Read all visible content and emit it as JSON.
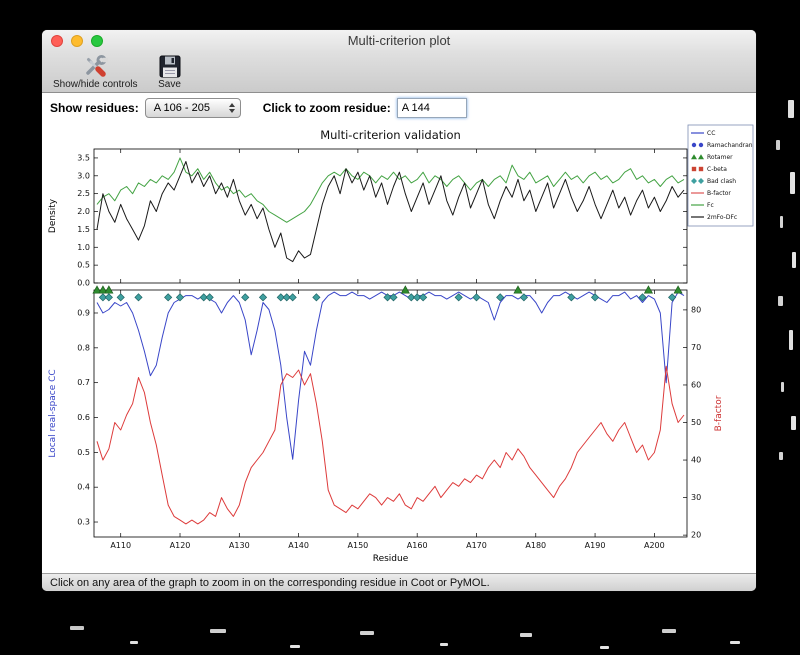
{
  "window": {
    "title": "Multi-criterion plot",
    "buttons": [
      "close",
      "minimize",
      "zoom"
    ]
  },
  "toolbar": {
    "buttons": [
      {
        "label": "Show/hide controls",
        "icon": "tools-icon"
      },
      {
        "label": "Save",
        "icon": "save-icon"
      }
    ]
  },
  "controls": {
    "show_residues_label": "Show residues:",
    "residue_range_value": "A 106 - 205",
    "zoom_label": "Click to zoom residue:",
    "zoom_value": "A 144"
  },
  "figure": {
    "legend": [
      {
        "label": "CC",
        "swatch": "line",
        "color": "#3946c8"
      },
      {
        "label": "Ramachandran",
        "swatch": "circles",
        "color": "#3946c8"
      },
      {
        "label": "Rotamer",
        "swatch": "triangles",
        "color": "#2e8b2e"
      },
      {
        "label": "C-beta",
        "swatch": "squares",
        "color": "#cc4433"
      },
      {
        "label": "Bad clash",
        "swatch": "diamonds",
        "color": "#3fa0a0"
      },
      {
        "label": "B-factor",
        "swatch": "line",
        "color": "#dd5555"
      },
      {
        "label": "Fc",
        "swatch": "line",
        "color": "#44a344"
      },
      {
        "label": "2mFo-DFc",
        "swatch": "line",
        "color": "#1a1a1a"
      }
    ]
  },
  "chart_data": [
    {
      "type": "line",
      "title": "Multi-criterion validation",
      "ylabel": "Density",
      "x_start": 106,
      "xlim": [
        106,
        205
      ],
      "ylim": [
        0,
        3.75
      ],
      "yticks": [
        0.0,
        0.5,
        1.0,
        1.5,
        2.0,
        2.5,
        3.0,
        3.5
      ],
      "series": [
        {
          "name": "Fc",
          "color": "#44a344",
          "values": [
            2.2,
            2.4,
            2.5,
            2.3,
            2.6,
            2.7,
            2.5,
            2.8,
            2.7,
            2.9,
            2.8,
            3.0,
            2.9,
            3.1,
            3.5,
            3.1,
            3.0,
            3.2,
            2.9,
            3.1,
            2.8,
            2.6,
            2.7,
            2.5,
            2.6,
            2.4,
            2.5,
            2.3,
            2.2,
            2.0,
            1.9,
            1.8,
            1.7,
            1.8,
            1.9,
            2.0,
            2.2,
            2.5,
            2.8,
            3.0,
            3.1,
            3.0,
            3.2,
            3.0,
            2.9,
            3.1,
            3.0,
            2.8,
            3.0,
            2.9,
            3.1,
            2.9,
            3.0,
            2.8,
            2.9,
            3.1,
            2.8,
            3.0,
            2.9,
            2.7,
            2.9,
            3.0,
            2.8,
            2.6,
            2.8,
            2.9,
            2.7,
            2.9,
            3.0,
            2.8,
            3.3,
            3.0,
            2.9,
            3.1,
            2.8,
            2.9,
            3.0,
            2.7,
            2.9,
            3.1,
            2.9,
            3.0,
            2.8,
            3.0,
            3.1,
            2.9,
            3.0,
            2.8,
            2.9,
            3.1,
            3.2,
            2.9,
            3.0,
            2.8,
            2.9,
            2.7,
            2.9,
            3.0,
            2.8,
            2.9
          ]
        },
        {
          "name": "2mFo-DFc",
          "color": "#1a1a1a",
          "values": [
            1.5,
            2.5,
            2.0,
            1.7,
            2.2,
            1.8,
            1.5,
            1.2,
            1.6,
            2.3,
            2.0,
            2.5,
            2.8,
            2.6,
            3.0,
            3.4,
            2.8,
            3.1,
            2.7,
            3.0,
            2.5,
            2.8,
            2.4,
            2.9,
            2.3,
            1.9,
            2.2,
            1.8,
            2.1,
            1.5,
            1.0,
            1.4,
            0.7,
            0.6,
            0.9,
            0.7,
            0.8,
            1.5,
            2.2,
            2.7,
            3.0,
            2.5,
            3.2,
            2.8,
            3.1,
            2.6,
            3.0,
            2.4,
            2.8,
            2.2,
            2.7,
            3.1,
            2.5,
            2.0,
            2.4,
            2.8,
            2.2,
            2.6,
            3.0,
            2.3,
            1.9,
            2.4,
            2.8,
            2.1,
            2.5,
            2.9,
            2.2,
            1.8,
            2.3,
            2.7,
            2.4,
            2.9,
            2.3,
            2.6,
            2.0,
            2.4,
            2.8,
            2.1,
            2.5,
            2.9,
            2.4,
            2.0,
            2.3,
            2.7,
            2.2,
            1.8,
            2.2,
            2.6,
            2.1,
            2.4,
            1.9,
            2.3,
            2.6,
            2.1,
            2.4,
            2.0,
            2.3,
            2.7,
            2.4,
            2.6
          ]
        }
      ]
    },
    {
      "type": "line",
      "xlabel": "Residue",
      "ylabel_left": "Local real-space CC",
      "ylabel_left_color": "#3946c8",
      "ylabel_right": "B-factor",
      "ylabel_right_color": "#cc3333",
      "x_start": 106,
      "xlim": [
        106,
        205
      ],
      "ylim_left": [
        0.257,
        0.966
      ],
      "ylim_right": [
        19.5,
        85.3
      ],
      "yticks_left": [
        0.3,
        0.4,
        0.5,
        0.6,
        0.7,
        0.8,
        0.9
      ],
      "yticks_right": [
        20,
        30,
        40,
        50,
        60,
        70,
        80
      ],
      "xticks": [
        110,
        120,
        130,
        140,
        150,
        160,
        170,
        180,
        190,
        200
      ],
      "xtick_labels": [
        "A110",
        "A120",
        "A130",
        "A140",
        "A150",
        "A160",
        "A170",
        "A180",
        "A190",
        "A200"
      ],
      "series": [
        {
          "name": "CC",
          "axis": "left",
          "color": "#3946c8",
          "values": [
            0.93,
            0.9,
            0.91,
            0.93,
            0.92,
            0.93,
            0.9,
            0.85,
            0.79,
            0.72,
            0.75,
            0.83,
            0.9,
            0.93,
            0.94,
            0.95,
            0.95,
            0.94,
            0.95,
            0.94,
            0.93,
            0.9,
            0.93,
            0.95,
            0.93,
            0.88,
            0.78,
            0.85,
            0.93,
            0.91,
            0.85,
            0.75,
            0.6,
            0.48,
            0.65,
            0.79,
            0.75,
            0.85,
            0.93,
            0.95,
            0.96,
            0.95,
            0.95,
            0.96,
            0.95,
            0.95,
            0.94,
            0.95,
            0.96,
            0.95,
            0.95,
            0.96,
            0.95,
            0.94,
            0.95,
            0.95,
            0.96,
            0.95,
            0.95,
            0.94,
            0.95,
            0.96,
            0.95,
            0.94,
            0.95,
            0.94,
            0.93,
            0.88,
            0.93,
            0.95,
            0.95,
            0.94,
            0.95,
            0.95,
            0.93,
            0.9,
            0.93,
            0.95,
            0.95,
            0.96,
            0.95,
            0.94,
            0.95,
            0.96,
            0.95,
            0.94,
            0.93,
            0.95,
            0.95,
            0.96,
            0.94,
            0.95,
            0.93,
            0.95,
            0.94,
            0.9,
            0.7,
            0.93,
            0.96,
            0.95
          ]
        },
        {
          "name": "B-factor",
          "axis": "right",
          "color": "#dd3b3b",
          "values": [
            45,
            40,
            43,
            50,
            48,
            52,
            55,
            62,
            58,
            50,
            44,
            36,
            28,
            25,
            24,
            23,
            24,
            23,
            24,
            26,
            25,
            30,
            27,
            25,
            28,
            34,
            38,
            40,
            42,
            45,
            48,
            60,
            63,
            62,
            64,
            60,
            63,
            55,
            45,
            32,
            28,
            27,
            26,
            28,
            27,
            29,
            31,
            30,
            28,
            30,
            29,
            31,
            28,
            27,
            30,
            29,
            31,
            33,
            30,
            32,
            34,
            33,
            35,
            34,
            36,
            35,
            38,
            40,
            38,
            42,
            40,
            43,
            41,
            38,
            36,
            34,
            32,
            30,
            33,
            35,
            38,
            42,
            44,
            46,
            48,
            50,
            47,
            45,
            48,
            50,
            46,
            42,
            44,
            40,
            42,
            48,
            65,
            55,
            50,
            52
          ]
        }
      ],
      "markers": [
        {
          "name": "Rotamer",
          "shape": "triangle",
          "color": "#2e8b2e",
          "edge": "#1d5c1d",
          "y": "top",
          "residues": [
            106,
            107,
            108,
            158,
            177,
            199,
            204
          ]
        },
        {
          "name": "Bad clash",
          "shape": "diamond",
          "color": "#3fa0a0",
          "edge": "#206464",
          "y": 0.945,
          "residues": [
            107,
            108,
            110,
            113,
            118,
            120,
            124,
            125,
            131,
            134,
            137,
            138,
            139,
            143,
            155,
            156,
            159,
            160,
            161,
            167,
            170,
            174,
            178,
            186,
            190,
            198,
            203
          ]
        }
      ]
    }
  ],
  "status": {
    "text": "Click on any area of the graph to zoom in on the corresponding residue in Coot or PyMOL."
  }
}
